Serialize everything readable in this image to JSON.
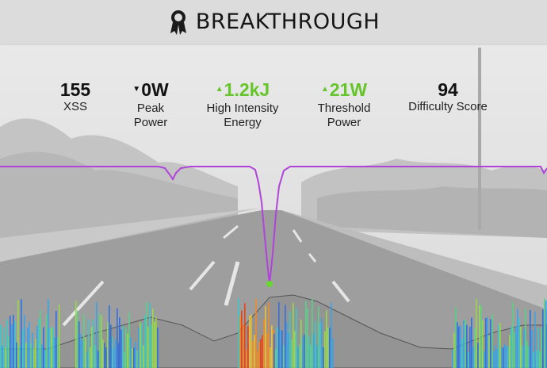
{
  "header": {
    "title": "BREAKTHROUGH",
    "icon": "medal-icon"
  },
  "stats": [
    {
      "value": "155",
      "label": "XSS",
      "trend": "none"
    },
    {
      "value": "0W",
      "label": "Peak Power",
      "trend": "down"
    },
    {
      "value": "1.2kJ",
      "label": "High Intensity Energy",
      "trend": "up"
    },
    {
      "value": "21W",
      "label": "Threshold Power",
      "trend": "up"
    },
    {
      "value": "94",
      "label": "Difficulty Score",
      "trend": "none"
    }
  ],
  "colors": {
    "accent_green": "#67c52c",
    "trace_purple": "#b044d8"
  }
}
